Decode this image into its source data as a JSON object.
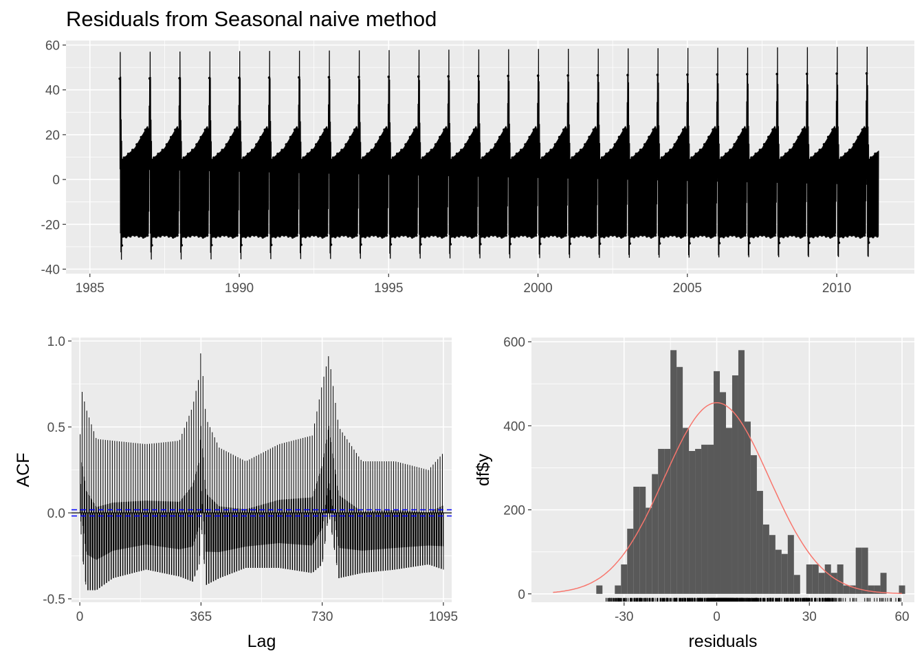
{
  "title": "Residuals from Seasonal naive method",
  "chart_data": [
    {
      "type": "line",
      "title": "Residuals from Seasonal naive method",
      "xlabel": "",
      "ylabel": "",
      "xlim": [
        1984.2,
        2012.6
      ],
      "ylim": [
        -42,
        62
      ],
      "x_ticks": [
        1985,
        1990,
        1995,
        2000,
        2005,
        2010
      ],
      "x_tick_labels": [
        "1985",
        "1990",
        "1995",
        "2000",
        "2005",
        "2010"
      ],
      "y_ticks": [
        -40,
        -20,
        0,
        20,
        40,
        60
      ],
      "y_tick_labels": [
        "-40",
        "-20",
        "0",
        "20",
        "40",
        "60"
      ],
      "series_range": [
        1986.0,
        2011.4
      ],
      "yearly_pattern": {
        "x_in_year": [
          0.0,
          0.02,
          0.05,
          0.08,
          0.5,
          0.85,
          0.93,
          0.97,
          1.0
        ],
        "upper": [
          45,
          60,
          24,
          9,
          14,
          22,
          24,
          22,
          45
        ],
        "lower": [
          22,
          -22,
          -38,
          -26,
          -25,
          -26,
          -25,
          -24,
          22
        ]
      },
      "grid": true
    },
    {
      "type": "bar",
      "xlabel": "Lag",
      "ylabel": "ACF",
      "xlim": [
        -25,
        1120
      ],
      "ylim": [
        -0.52,
        1.02
      ],
      "x_ticks": [
        0,
        365,
        730,
        1095
      ],
      "x_tick_labels": [
        "0",
        "365",
        "730",
        "1095"
      ],
      "y_ticks": [
        -0.5,
        0.0,
        0.5,
        1.0
      ],
      "y_tick_labels": [
        "-0.5",
        "0.0",
        "0.5",
        "1.0"
      ],
      "max_lag": 1095,
      "period": 7,
      "envelope": {
        "lag": [
          1,
          5,
          20,
          50,
          100,
          200,
          300,
          340,
          360,
          365,
          380,
          420,
          500,
          600,
          700,
          730,
          750,
          780,
          850,
          950,
          1050,
          1095
        ],
        "peak": [
          0.75,
          0.72,
          0.6,
          0.43,
          0.42,
          0.4,
          0.42,
          0.62,
          0.8,
          0.96,
          0.55,
          0.38,
          0.3,
          0.4,
          0.45,
          0.75,
          0.92,
          0.5,
          0.3,
          0.3,
          0.25,
          0.35
        ],
        "trough": [
          0.1,
          -0.2,
          -0.45,
          -0.45,
          -0.38,
          -0.33,
          -0.37,
          -0.4,
          -0.3,
          -0.05,
          -0.42,
          -0.38,
          -0.32,
          -0.32,
          -0.35,
          -0.3,
          0.0,
          -0.38,
          -0.35,
          -0.33,
          -0.3,
          -0.33
        ]
      },
      "confidence_bound": 0.018,
      "grid": true
    },
    {
      "type": "bar",
      "xlabel": "residuals",
      "ylabel": "df$y",
      "xlim": [
        -60,
        64
      ],
      "ylim": [
        -20,
        610
      ],
      "x_ticks": [
        -30,
        0,
        30,
        60
      ],
      "x_tick_labels": [
        "-30",
        "0",
        "30",
        "60"
      ],
      "y_ticks": [
        0,
        200,
        400,
        600
      ],
      "y_tick_labels": [
        "0",
        "200",
        "400",
        "600"
      ],
      "bin_width": 2,
      "bin_centers": [
        -38,
        -36,
        -34,
        -32,
        -30,
        -28,
        -26,
        -24,
        -22,
        -20,
        -18,
        -16,
        -14,
        -12,
        -10,
        -8,
        -6,
        -4,
        -2,
        0,
        2,
        4,
        6,
        8,
        10,
        12,
        14,
        16,
        18,
        20,
        22,
        24,
        26,
        28,
        30,
        32,
        34,
        36,
        38,
        40,
        42,
        44,
        46,
        48,
        50,
        52,
        54,
        56,
        58,
        60
      ],
      "counts": [
        20,
        0,
        0,
        20,
        70,
        155,
        255,
        255,
        205,
        285,
        345,
        345,
        580,
        540,
        395,
        340,
        345,
        355,
        355,
        530,
        480,
        395,
        520,
        580,
        410,
        330,
        245,
        165,
        140,
        105,
        95,
        140,
        45,
        0,
        70,
        70,
        50,
        70,
        50,
        70,
        20,
        20,
        110,
        110,
        20,
        20,
        50,
        0,
        0,
        20
      ],
      "normal_curve": {
        "mean": 0,
        "sd": 17,
        "peak": 455,
        "xrange": [
          -53,
          60
        ]
      },
      "rug_range": [
        -40,
        60
      ],
      "colors": {
        "bars": "#595959",
        "curve": "#f8766d"
      },
      "grid": true
    }
  ]
}
